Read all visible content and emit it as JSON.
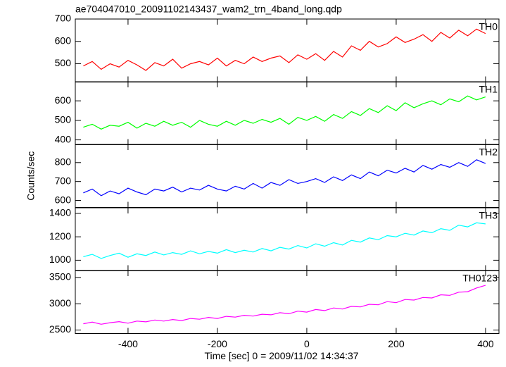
{
  "chart_data": [
    {
      "type": "line",
      "title": "ae704047010_20091102143437_wam2_trn_4band_long.qdp",
      "x": [
        -500,
        -480,
        -460,
        -440,
        -420,
        -400,
        -380,
        -360,
        -340,
        -320,
        -300,
        -280,
        -260,
        -240,
        -220,
        -200,
        -180,
        -160,
        -140,
        -120,
        -100,
        -80,
        -60,
        -40,
        -20,
        0,
        20,
        40,
        60,
        80,
        100,
        120,
        140,
        160,
        180,
        200,
        220,
        240,
        260,
        280,
        300,
        320,
        340,
        360,
        380,
        400
      ],
      "series": [
        {
          "name": "TH0",
          "color": "#ff0000",
          "values": [
            490,
            510,
            475,
            500,
            485,
            515,
            495,
            470,
            505,
            490,
            520,
            480,
            500,
            510,
            495,
            525,
            490,
            515,
            500,
            530,
            510,
            525,
            535,
            505,
            540,
            520,
            545,
            515,
            555,
            530,
            580,
            560,
            600,
            575,
            590,
            620,
            595,
            610,
            630,
            600,
            640,
            615,
            650,
            625,
            655,
            635
          ]
        }
      ],
      "xlim": [
        -518,
        430
      ],
      "xticks": [
        -400,
        -200,
        0,
        200,
        400
      ],
      "ylim": [
        418,
        700
      ],
      "yticks": [
        500,
        600,
        700
      ]
    },
    {
      "type": "line",
      "x": [
        -500,
        -480,
        -460,
        -440,
        -420,
        -400,
        -380,
        -360,
        -340,
        -320,
        -300,
        -280,
        -260,
        -240,
        -220,
        -200,
        -180,
        -160,
        -140,
        -120,
        -100,
        -80,
        -60,
        -40,
        -20,
        0,
        20,
        40,
        60,
        80,
        100,
        120,
        140,
        160,
        180,
        200,
        220,
        240,
        260,
        280,
        300,
        320,
        340,
        360,
        380,
        400
      ],
      "series": [
        {
          "name": "TH1",
          "color": "#00ff00",
          "values": [
            465,
            480,
            455,
            475,
            470,
            490,
            460,
            485,
            470,
            495,
            475,
            490,
            465,
            500,
            480,
            470,
            495,
            475,
            500,
            485,
            505,
            490,
            510,
            480,
            515,
            500,
            520,
            495,
            530,
            510,
            545,
            525,
            560,
            540,
            575,
            550,
            590,
            565,
            585,
            600,
            580,
            610,
            595,
            625,
            605,
            620
          ]
        }
      ],
      "xlim": [
        -518,
        430
      ],
      "xticks": [
        -400,
        -200,
        0,
        200,
        400
      ],
      "ylim": [
        375,
        698
      ],
      "yticks": [
        400,
        500,
        600
      ]
    },
    {
      "type": "line",
      "ylabel": "Counts/sec",
      "x": [
        -500,
        -480,
        -460,
        -440,
        -420,
        -400,
        -380,
        -360,
        -340,
        -320,
        -300,
        -280,
        -260,
        -240,
        -220,
        -200,
        -180,
        -160,
        -140,
        -120,
        -100,
        -80,
        -60,
        -40,
        -20,
        0,
        20,
        40,
        60,
        80,
        100,
        120,
        140,
        160,
        180,
        200,
        220,
        240,
        260,
        280,
        300,
        320,
        340,
        360,
        380,
        400
      ],
      "series": [
        {
          "name": "TH2",
          "color": "#0000ff",
          "values": [
            640,
            660,
            625,
            650,
            635,
            665,
            645,
            630,
            660,
            650,
            670,
            645,
            665,
            655,
            680,
            660,
            650,
            675,
            660,
            690,
            665,
            695,
            680,
            710,
            690,
            700,
            715,
            695,
            725,
            705,
            735,
            715,
            750,
            730,
            760,
            745,
            770,
            750,
            785,
            765,
            790,
            775,
            800,
            780,
            815,
            795
          ]
        }
      ],
      "xlim": [
        -518,
        430
      ],
      "xticks": [
        -400,
        -200,
        0,
        200,
        400
      ],
      "ylim": [
        563,
        896
      ],
      "yticks": [
        600,
        700,
        800
      ]
    },
    {
      "type": "line",
      "x": [
        -500,
        -480,
        -460,
        -440,
        -420,
        -400,
        -380,
        -360,
        -340,
        -320,
        -300,
        -280,
        -260,
        -240,
        -220,
        -200,
        -180,
        -160,
        -140,
        -120,
        -100,
        -80,
        -60,
        -40,
        -20,
        0,
        20,
        40,
        60,
        80,
        100,
        120,
        140,
        160,
        180,
        200,
        220,
        240,
        260,
        280,
        300,
        320,
        340,
        360,
        380,
        400
      ],
      "series": [
        {
          "name": "TH3",
          "color": "#00ffff",
          "values": [
            1030,
            1050,
            1015,
            1040,
            1060,
            1025,
            1055,
            1040,
            1070,
            1045,
            1065,
            1050,
            1080,
            1055,
            1075,
            1060,
            1090,
            1065,
            1085,
            1070,
            1100,
            1080,
            1110,
            1095,
            1125,
            1105,
            1140,
            1120,
            1150,
            1130,
            1170,
            1155,
            1190,
            1175,
            1210,
            1200,
            1230,
            1215,
            1250,
            1235,
            1270,
            1255,
            1300,
            1285,
            1320,
            1310
          ]
        }
      ],
      "xlim": [
        -518,
        430
      ],
      "xticks": [
        -400,
        -200,
        0,
        200,
        400
      ],
      "ylim": [
        909,
        1448
      ],
      "yticks": [
        1000,
        1200,
        1400
      ]
    },
    {
      "type": "line",
      "xlabel": "Time [sec] 0 = 2009/11/02 14:34:37",
      "x": [
        -500,
        -480,
        -460,
        -440,
        -420,
        -400,
        -380,
        -360,
        -340,
        -320,
        -300,
        -280,
        -260,
        -240,
        -220,
        -200,
        -180,
        -160,
        -140,
        -120,
        -100,
        -80,
        -60,
        -40,
        -20,
        0,
        20,
        40,
        60,
        80,
        100,
        120,
        140,
        160,
        180,
        200,
        220,
        240,
        260,
        280,
        300,
        320,
        340,
        360,
        380,
        400
      ],
      "series": [
        {
          "name": "TH0123",
          "color": "#ff00ff",
          "values": [
            2620,
            2650,
            2610,
            2640,
            2660,
            2630,
            2670,
            2655,
            2690,
            2670,
            2700,
            2680,
            2720,
            2705,
            2740,
            2720,
            2760,
            2745,
            2780,
            2765,
            2800,
            2790,
            2830,
            2810,
            2860,
            2840,
            2890,
            2870,
            2920,
            2900,
            2950,
            2940,
            2990,
            2980,
            3040,
            3020,
            3080,
            3070,
            3120,
            3110,
            3170,
            3160,
            3220,
            3230,
            3300,
            3350
          ]
        }
      ],
      "xlim": [
        -518,
        430
      ],
      "xticks": [
        -400,
        -200,
        0,
        200,
        400
      ],
      "ylim": [
        2433,
        3633
      ],
      "yticks": [
        2500,
        3000,
        3500
      ]
    }
  ]
}
